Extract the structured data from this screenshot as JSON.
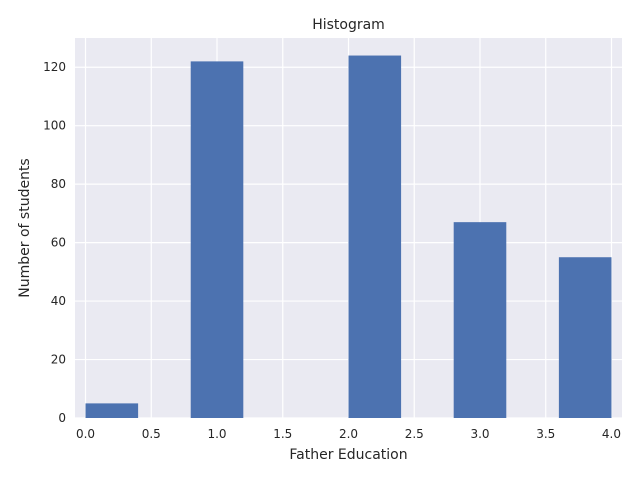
{
  "chart_data": {
    "type": "bar",
    "title": "Histogram",
    "xlabel": "Father Education",
    "ylabel": "Number of students",
    "bins": [
      {
        "start": 0.0,
        "end": 0.4,
        "value": 5
      },
      {
        "start": 0.4,
        "end": 0.8,
        "value": 0
      },
      {
        "start": 0.8,
        "end": 1.2,
        "value": 122
      },
      {
        "start": 1.2,
        "end": 1.6,
        "value": 0
      },
      {
        "start": 1.6,
        "end": 2.0,
        "value": 0
      },
      {
        "start": 2.0,
        "end": 2.4,
        "value": 124
      },
      {
        "start": 2.4,
        "end": 2.8,
        "value": 0
      },
      {
        "start": 2.8,
        "end": 3.2,
        "value": 67
      },
      {
        "start": 3.2,
        "end": 3.6,
        "value": 0
      },
      {
        "start": 3.6,
        "end": 4.0,
        "value": 55
      }
    ],
    "xlim": [
      -0.08,
      4.08
    ],
    "ylim": [
      0,
      130
    ],
    "xticks": [
      0.0,
      0.5,
      1.0,
      1.5,
      2.0,
      2.5,
      3.0,
      3.5,
      4.0
    ],
    "xtick_labels": [
      "0.0",
      "0.5",
      "1.0",
      "1.5",
      "2.0",
      "2.5",
      "3.0",
      "3.5",
      "4.0"
    ],
    "yticks": [
      0,
      20,
      40,
      60,
      80,
      100,
      120
    ],
    "ytick_labels": [
      "0",
      "20",
      "40",
      "60",
      "80",
      "100",
      "120"
    ],
    "grid": true,
    "bar_color": "#4c72b0",
    "background_color": "#eaeaf2"
  }
}
